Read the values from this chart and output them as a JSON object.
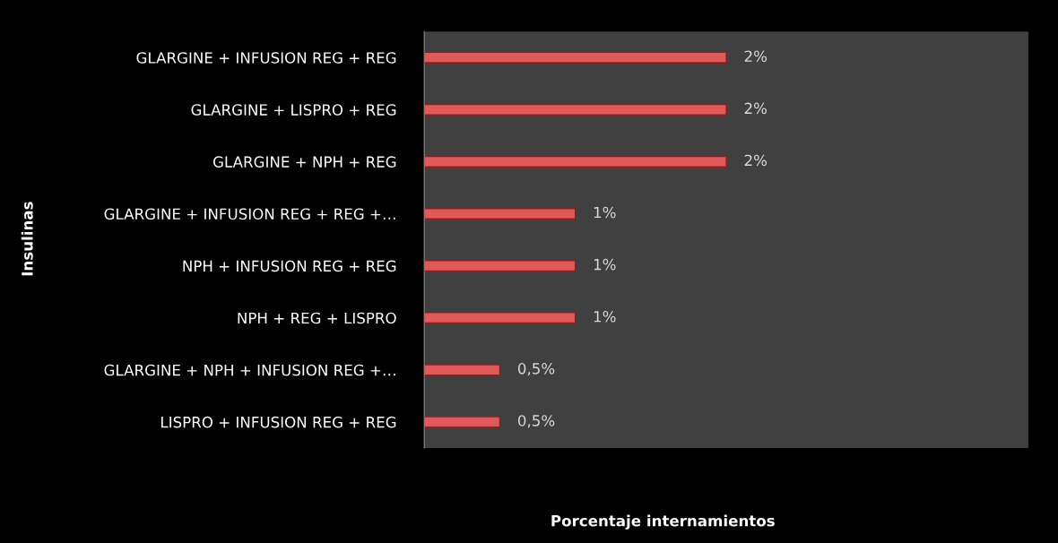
{
  "chart_data": {
    "type": "bar",
    "orientation": "horizontal",
    "categories": [
      "GLARGINE + INFUSION REG + REG",
      "GLARGINE + LISPRO + REG",
      "GLARGINE + NPH + REG",
      "GLARGINE + INFUSION REG + REG +…",
      "NPH + INFUSION REG + REG",
      "NPH + REG + LISPRO",
      "GLARGINE + NPH + INFUSION REG +…",
      "LISPRO + INFUSION REG + REG"
    ],
    "values": [
      2,
      2,
      2,
      1,
      1,
      1,
      0.5,
      0.5
    ],
    "value_labels": [
      "2%",
      "2%",
      "2%",
      "1%",
      "1%",
      "1%",
      "0,5%",
      "0,5%"
    ],
    "color": "#e05a5a",
    "xlim": [
      0,
      4
    ],
    "tick_labels": "y",
    "xlabel": "Porcentaje internamientos",
    "ylabel": "Insulinas",
    "grid": false,
    "legend": false
  }
}
